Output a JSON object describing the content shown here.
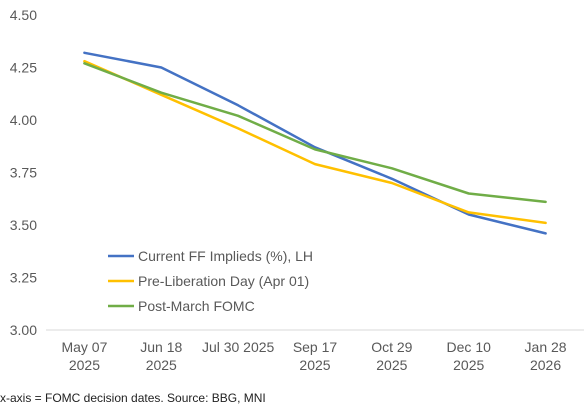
{
  "chart_data": {
    "type": "line",
    "categories": [
      [
        "May 07",
        "2025"
      ],
      [
        "Jun 18",
        "2025"
      ],
      [
        "Jul 30 2025",
        ""
      ],
      [
        "Sep 17",
        "2025"
      ],
      [
        "Oct 29",
        "2025"
      ],
      [
        "Dec 10",
        "2025"
      ],
      [
        "Jan 28",
        "2026"
      ]
    ],
    "ylim": [
      3.0,
      4.5
    ],
    "yticks": [
      "3.00",
      "3.25",
      "3.50",
      "3.75",
      "4.00",
      "4.25",
      "4.50"
    ],
    "grid": false,
    "legend_position": "bottom-left",
    "series": [
      {
        "name": "Current FF Implieds (%), LH",
        "color": "#4472C4",
        "values": [
          4.32,
          4.25,
          4.07,
          3.87,
          3.72,
          3.55,
          3.46
        ]
      },
      {
        "name": "Pre-Liberation Day (Apr 01)",
        "color": "#FFC000",
        "values": [
          4.28,
          4.12,
          3.96,
          3.79,
          3.7,
          3.56,
          3.51
        ]
      },
      {
        "name": "Post-March FOMC",
        "color": "#70AD47",
        "values": [
          4.27,
          4.13,
          4.02,
          3.86,
          3.77,
          3.65,
          3.61
        ]
      }
    ]
  },
  "footnote": "x-axis = FOMC decision dates. Source: BBG, MNI"
}
